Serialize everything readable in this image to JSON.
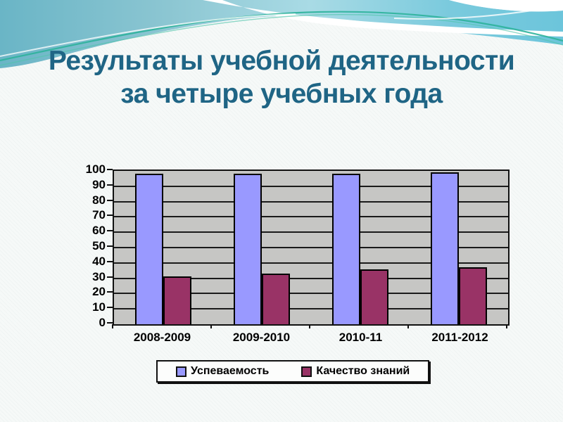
{
  "slide": {
    "title": {
      "line1": "Результаты учебной деятельности",
      "line2": "за четыре учебных года",
      "color": "#1F6585"
    },
    "background_color": "#F6F9F8",
    "decor": {
      "band_gradient": [
        "#6AB5C6",
        "#8CC6D2",
        "#A9DBE5",
        "#7ACADD",
        "#6CC5DB"
      ],
      "accent_line_green": "#2EB39B",
      "accent_line_green_light": "#52C4AC",
      "wave_white": "#FFFFFF"
    }
  },
  "chart_data": {
    "type": "bar",
    "title": "Результаты учебной деятельности за четыре учебных года",
    "xlabel": "",
    "ylabel": "",
    "categories": [
      "2008-2009",
      "2009-2010",
      "2010-11",
      "2011-2012"
    ],
    "series": [
      {
        "name": "Успеваемость",
        "color": "#9999FF",
        "values": [
          98,
          98,
          98,
          99
        ]
      },
      {
        "name": "Качество знаний",
        "color": "#993366",
        "values": [
          31,
          33,
          36,
          37
        ]
      }
    ],
    "ylim": [
      0,
      100
    ],
    "yticks": [
      0,
      10,
      20,
      30,
      40,
      50,
      60,
      70,
      80,
      90,
      100
    ],
    "grid": true,
    "gridline_color": "#1A1A1A",
    "plot_background": "#C6C6C4",
    "bar_border_color": "#000000",
    "legend_position": "bottom"
  }
}
